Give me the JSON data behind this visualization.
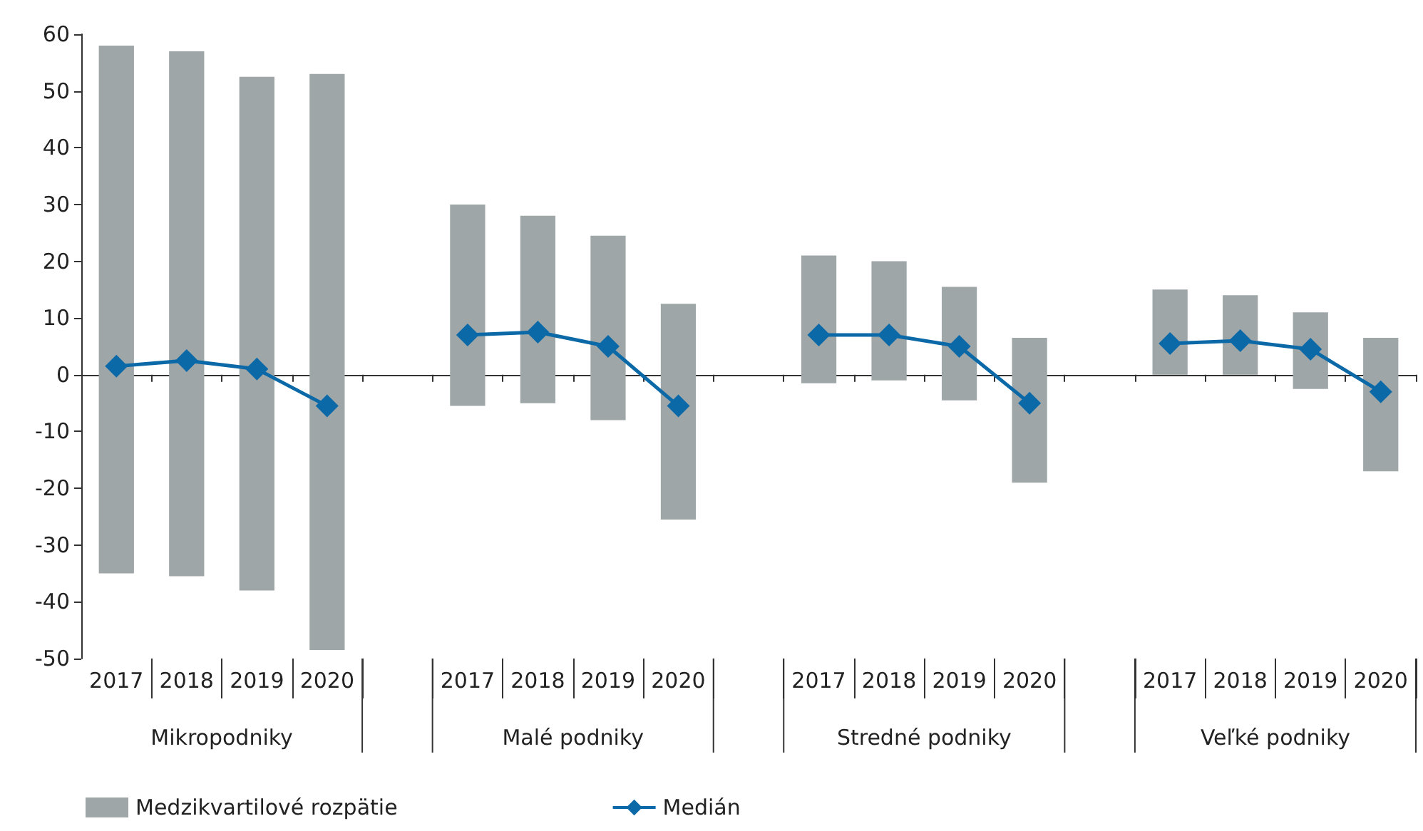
{
  "chart_data": {
    "type": "bar",
    "categories": [
      "2017",
      "2018",
      "2019",
      "2020",
      null,
      "2017",
      "2018",
      "2019",
      "2020",
      null,
      "2017",
      "2018",
      "2019",
      "2020",
      null,
      "2017",
      "2018",
      "2019",
      "2020"
    ],
    "series": [
      {
        "name": "Medzikvartilové rozpätie",
        "color": "#9fa6a8",
        "base": [
          -35,
          -35.5,
          -38,
          -48.5,
          null,
          -5.5,
          -5,
          -8,
          -25.5,
          null,
          -1.5,
          -1,
          -4.5,
          -19,
          null,
          0,
          0,
          -2.5,
          -17
        ],
        "values": [
          93,
          92.5,
          90.5,
          101.5,
          null,
          35.5,
          33,
          32.5,
          38,
          null,
          22.5,
          21,
          20,
          25.5,
          null,
          15,
          14,
          13.5,
          23.5
        ]
      },
      {
        "name": "Medián",
        "type": "line",
        "color": "#0b69a8",
        "marker": "diamond",
        "values": [
          1.5,
          2.5,
          1,
          -5.5,
          null,
          7,
          7.5,
          5,
          -5.5,
          null,
          7,
          7,
          5,
          -5,
          null,
          5.5,
          6,
          4.5,
          -3
        ]
      }
    ],
    "annotations": [
      "Mikropodniky",
      "Malé podniky",
      "Stredné podniky",
      "Veľké podniky"
    ],
    "ylim": [
      -50,
      60
    ],
    "yticks": [
      -50,
      -40,
      -30,
      -20,
      -10,
      0,
      10,
      20,
      30,
      40,
      50,
      60
    ],
    "legend": "bottom left"
  }
}
